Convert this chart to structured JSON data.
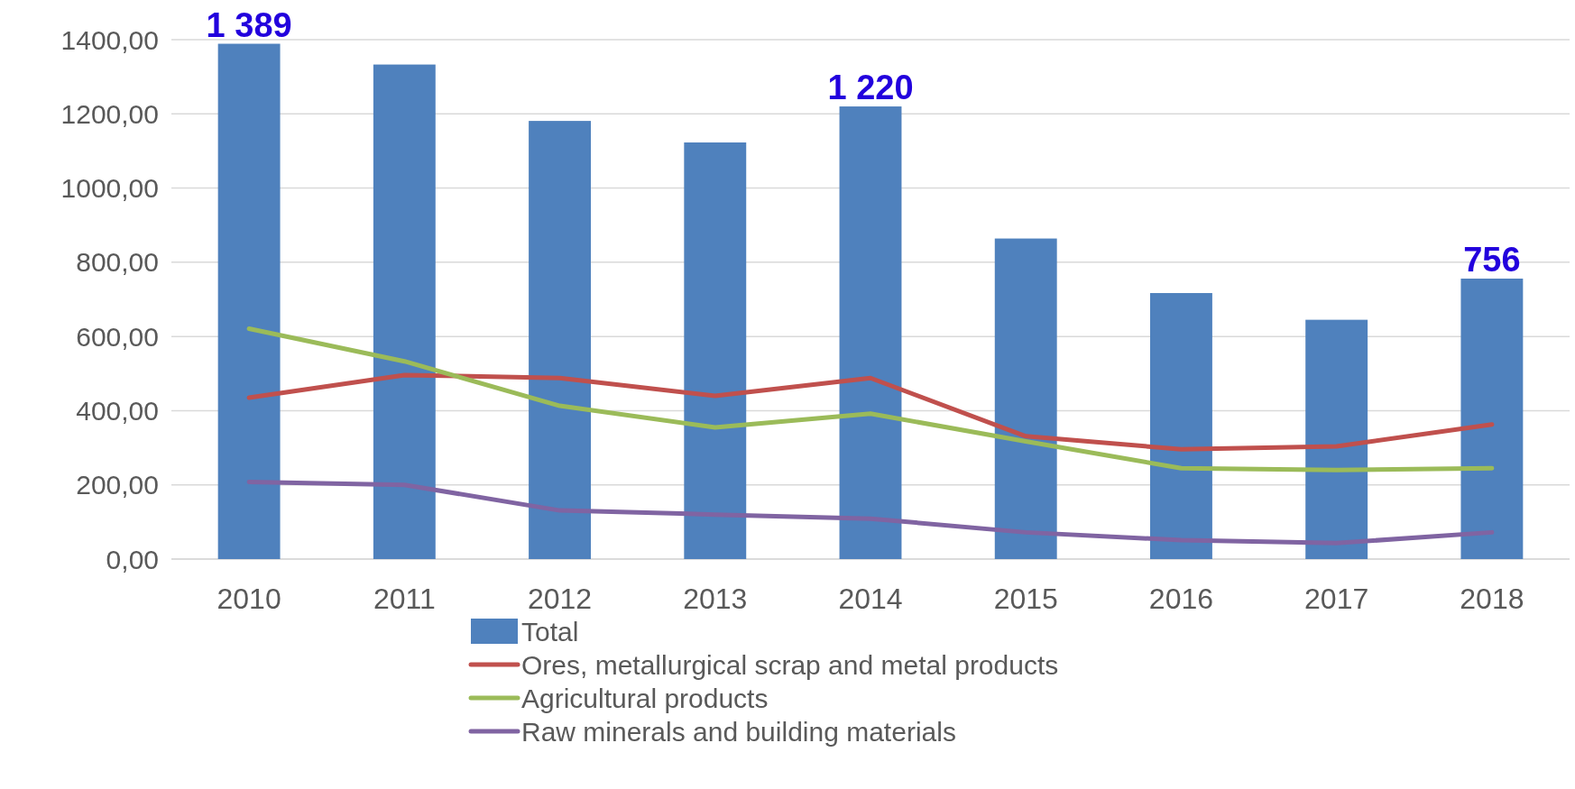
{
  "chart_data": {
    "type": "bar",
    "categories": [
      "2010",
      "2011",
      "2012",
      "2013",
      "2014",
      "2015",
      "2016",
      "2017",
      "2018"
    ],
    "series": [
      {
        "name": "Total",
        "color": "#4f81bd",
        "values": [
          1389,
          1333,
          1181,
          1123,
          1220,
          864,
          717,
          645,
          756
        ],
        "value_labels": [
          "1 389",
          null,
          null,
          null,
          "1 220",
          null,
          null,
          null,
          "756"
        ]
      },
      {
        "name": "Ores, metallurgical scrap and metal products",
        "type": "line",
        "color": "#c0504d",
        "values": [
          435,
          496,
          488,
          440,
          488,
          331,
          296,
          304,
          363
        ]
      },
      {
        "name": "Agricultural products",
        "type": "line",
        "color": "#9bbb59",
        "values": [
          621,
          533,
          413,
          355,
          392,
          317,
          245,
          240,
          245
        ]
      },
      {
        "name": "Raw minerals and building materials",
        "type": "line",
        "color": "#8064a2",
        "values": [
          208,
          200,
          131,
          120,
          109,
          72,
          51,
          43,
          72
        ]
      }
    ],
    "ylim": [
      0,
      1400
    ],
    "yticks": [
      {
        "value": 0,
        "label": "0,00"
      },
      {
        "value": 200,
        "label": "200,00"
      },
      {
        "value": 400,
        "label": "400,00"
      },
      {
        "value": 600,
        "label": "600,00"
      },
      {
        "value": 800,
        "label": "800,00"
      },
      {
        "value": 1000,
        "label": "1000,00"
      },
      {
        "value": 1200,
        "label": "1200,00"
      },
      {
        "value": 1400,
        "label": "1400,00"
      }
    ],
    "grid": "y",
    "legend": "bottom",
    "marker": "none",
    "line_style": "solid"
  }
}
